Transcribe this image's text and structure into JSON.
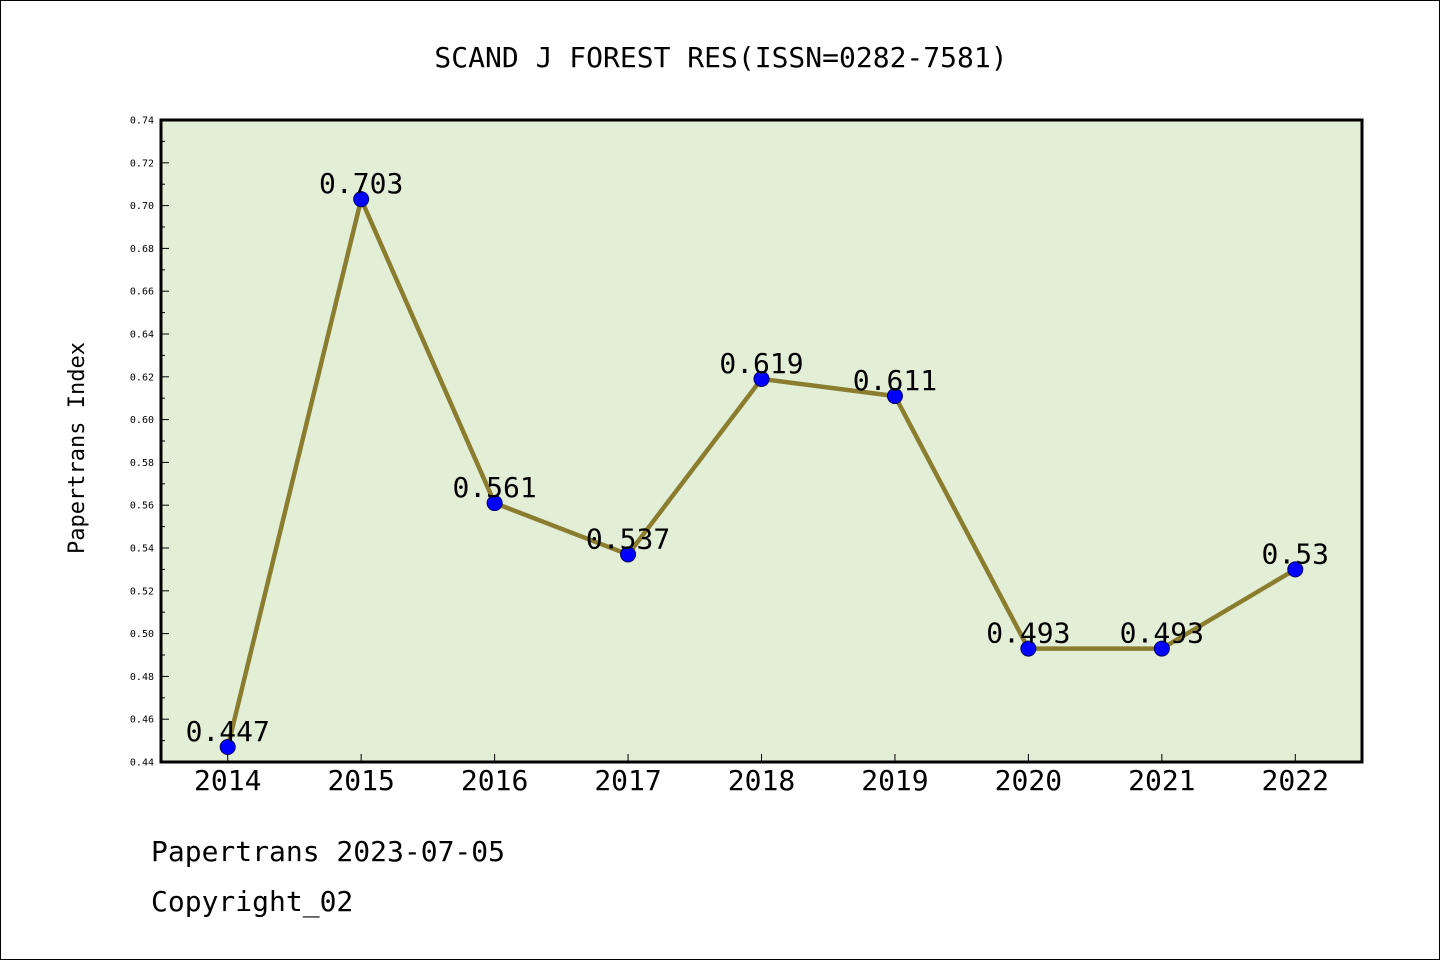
{
  "chart_data": {
    "type": "line",
    "title": "SCAND J FOREST RES(ISSN=0282-7581)",
    "xlabel": "",
    "ylabel": "Papertrans Index",
    "categories": [
      "2014",
      "2015",
      "2016",
      "2017",
      "2018",
      "2019",
      "2020",
      "2021",
      "2022"
    ],
    "series": [
      {
        "values": [
          0.447,
          0.703,
          0.561,
          0.537,
          0.619,
          0.611,
          0.493,
          0.493,
          0.53
        ],
        "labels": [
          "0.447",
          "0.703",
          "0.561",
          "0.537",
          "0.619",
          "0.611",
          "0.493",
          "0.493",
          "0.53"
        ]
      }
    ],
    "ylim": [
      0.44,
      0.74
    ],
    "yticks": [
      "0.44",
      "0.46",
      "0.48",
      "0.50",
      "0.52",
      "0.54",
      "0.56",
      "0.58",
      "0.60",
      "0.62",
      "0.64",
      "0.66",
      "0.68",
      "0.70",
      "0.72",
      "0.74"
    ],
    "grid": false,
    "legend": "none",
    "colors": {
      "plot_background": "#e2efd6",
      "line": "#8b7d2f",
      "marker": "#0000ff",
      "marker_edge": "#000066"
    }
  },
  "footer": {
    "line1": "Papertrans 2023-07-05",
    "line2": "Copyright_02"
  }
}
